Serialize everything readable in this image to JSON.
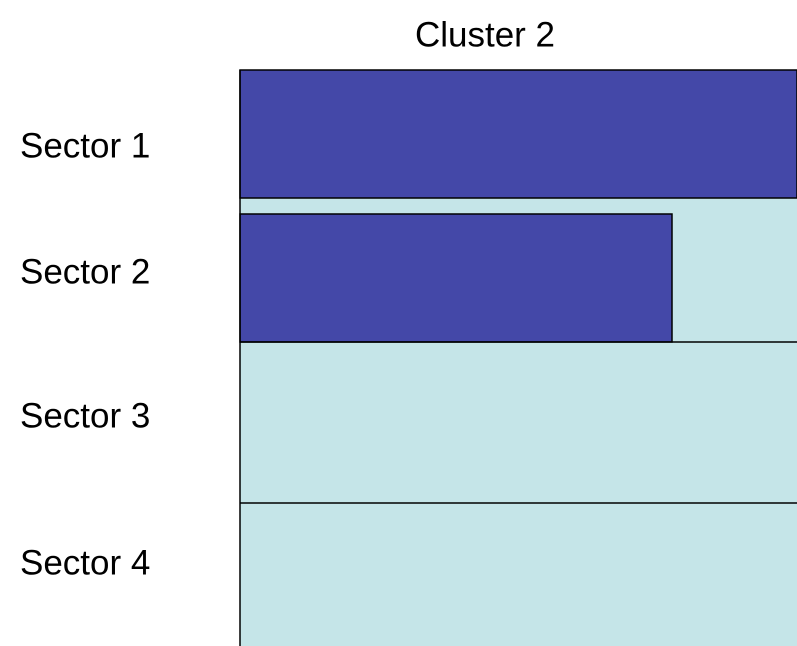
{
  "title": "Cluster 2",
  "sectors": [
    {
      "label": "Sector 1"
    },
    {
      "label": "Sector 2"
    },
    {
      "label": "Sector 3"
    },
    {
      "label": "Sector 4"
    }
  ]
}
